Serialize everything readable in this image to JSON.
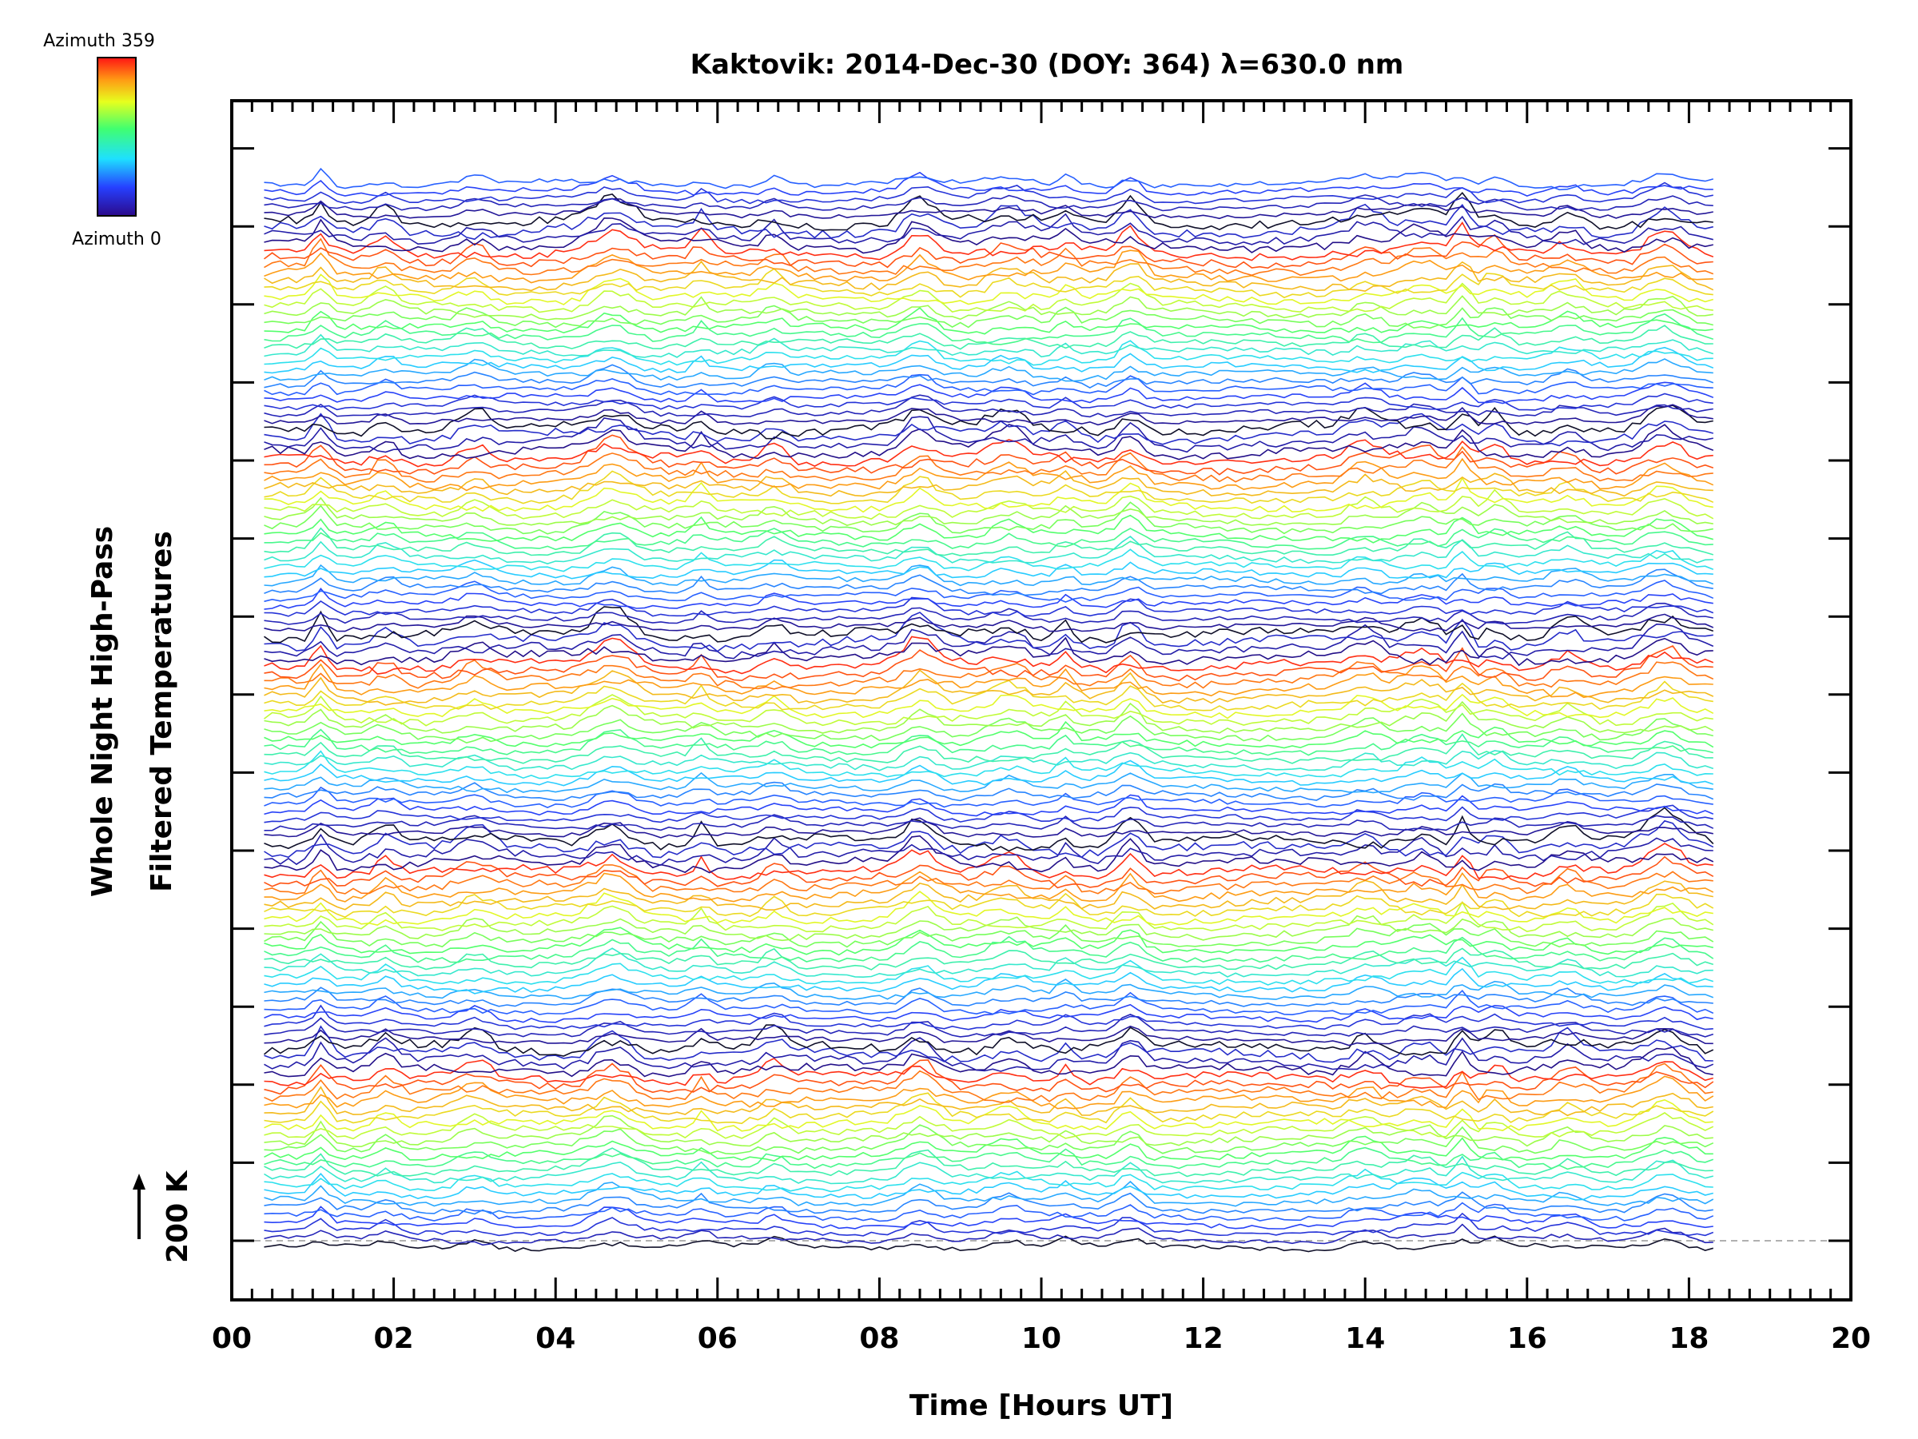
{
  "chart_data": {
    "type": "line",
    "title": "Kaktovik: 2014-Dec-30 (DOY: 364) λ=630.0 nm",
    "xlabel": "Time [Hours UT]",
    "ylabel_line1": "Whole Night High-Pass",
    "ylabel_line2": "Filtered Temperatures",
    "scale_label": "200 K",
    "xlim": [
      0,
      20
    ],
    "x_ticks": [
      "00",
      "02",
      "04",
      "06",
      "08",
      "10",
      "12",
      "14",
      "16",
      "18",
      "20"
    ],
    "colorbar": {
      "top_label": "Azimuth  359",
      "bottom_label": "Azimuth  0"
    },
    "trace_count": 140,
    "time_range": [
      0.4,
      18.3
    ],
    "event_times": [
      1.1,
      1.9,
      3.0,
      4.7,
      5.8,
      6.7,
      8.5,
      9.6,
      10.3,
      11.1,
      14.0,
      14.7,
      15.2,
      15.6,
      16.5,
      17.7
    ]
  }
}
